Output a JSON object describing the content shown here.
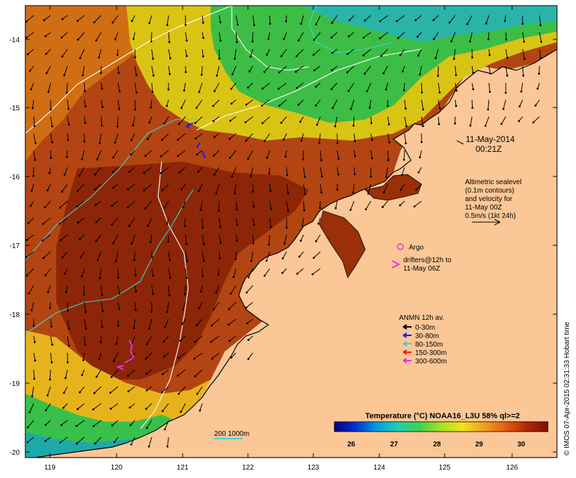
{
  "map": {
    "lat_ticks": [
      "-14",
      "-15",
      "-16",
      "-17",
      "-18",
      "-19",
      "-20"
    ],
    "lon_ticks": [
      "119",
      "120",
      "121",
      "122",
      "123",
      "124",
      "125",
      "126"
    ],
    "colors": {
      "land": "#fbc796",
      "ocean_warm": "#9a2f08",
      "ocean_mid": "#c56410",
      "ocean_cool": "#e6a31a",
      "ocean_yellow": "#e6e21a",
      "ocean_green": "#29c04a",
      "ocean_teal": "#27b8b0",
      "contour_white": "#ffffff",
      "contour_cyan": "#3fd6d0",
      "argo": "#e234e2",
      "drifter": "#e234e2"
    }
  },
  "annotations": {
    "date": "11-May-2014",
    "time": "00:21Z",
    "altimetry_lines": [
      "Altimetric sealevel",
      "(0.1m contours)",
      "and velocity for",
      "11-May 00Z",
      "0.5m/s (1kt 24h)"
    ],
    "argo_label": "Argo",
    "drifters_lines": [
      "drifters@12h to",
      "11-May 06Z"
    ],
    "anmn_title": "ANMN 12h av.",
    "anmn_items": [
      {
        "label": "0-30m",
        "color": "#000000"
      },
      {
        "label": "30-80m",
        "color": "#1a1aff"
      },
      {
        "label": "80-150m",
        "color": "#3fd6d0"
      },
      {
        "label": "150-300m",
        "color": "#ff1a1a"
      },
      {
        "label": "300-600m",
        "color": "#e234e2"
      }
    ],
    "scale_label": "200  1000m",
    "vertical_credit": "© IMOS 07-Apr-2015 02:31:33 Hobart time"
  },
  "colorbar": {
    "title": "Temperature (°C) NOAA16_L3U 58% ql>=2",
    "ticks": [
      "26",
      "27",
      "28",
      "29",
      "30"
    ],
    "gradient": [
      "#00007a",
      "#0030d0",
      "#00a0e0",
      "#20d0b0",
      "#40d050",
      "#a8e020",
      "#f0e020",
      "#f0a020",
      "#e06010",
      "#b02808",
      "#7a1004"
    ]
  }
}
